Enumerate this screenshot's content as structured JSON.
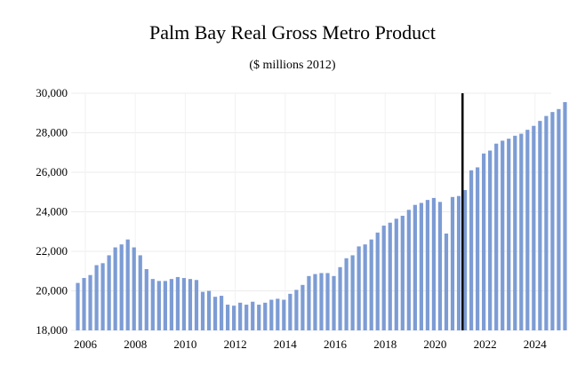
{
  "chart_data": {
    "type": "bar",
    "title": "Palm Bay Real Gross Metro Product",
    "subtitle": "($ millions 2012)",
    "xlabel": "",
    "ylabel": "",
    "ylim": [
      18000,
      30000
    ],
    "yticks": [
      18000,
      20000,
      22000,
      24000,
      26000,
      28000,
      30000
    ],
    "ytick_labels": [
      "18,000",
      "20,000",
      "22,000",
      "24,000",
      "26,000",
      "28,000",
      "30,000"
    ],
    "xticks": [
      "2006",
      "2008",
      "2010",
      "2012",
      "2014",
      "2016",
      "2018",
      "2020",
      "2022",
      "2024"
    ],
    "x_start": "2006Q1",
    "frequency": "quarterly",
    "bar_color": "#7d9cd4",
    "marker_line": {
      "x": "2021Q3",
      "color": "#000000"
    },
    "grid": true,
    "series": [
      {
        "values": [
          20400,
          20650,
          20800,
          21300,
          21400,
          21800,
          22200,
          22350,
          22600,
          22200,
          21800,
          21100,
          20600,
          20500,
          20500,
          20600,
          20700,
          20650,
          20600,
          20550,
          19950,
          20000,
          19700,
          19750,
          19300,
          19250,
          19400,
          19300,
          19450,
          19300,
          19400,
          19550,
          19600,
          19550,
          19850,
          20050,
          20300,
          20750,
          20850,
          20900,
          20900,
          20750,
          21200,
          21650,
          21800,
          22250,
          22350,
          22600,
          22950,
          23300,
          23450,
          23650,
          23800,
          24100,
          24350,
          24450,
          24600,
          24700,
          24500,
          22900,
          24750,
          24800,
          25100,
          26100,
          26250,
          26950,
          27100,
          27450,
          27600,
          27700,
          27850,
          27950,
          28150,
          28350,
          28600,
          28850,
          29050,
          29200,
          29550
        ]
      }
    ]
  }
}
